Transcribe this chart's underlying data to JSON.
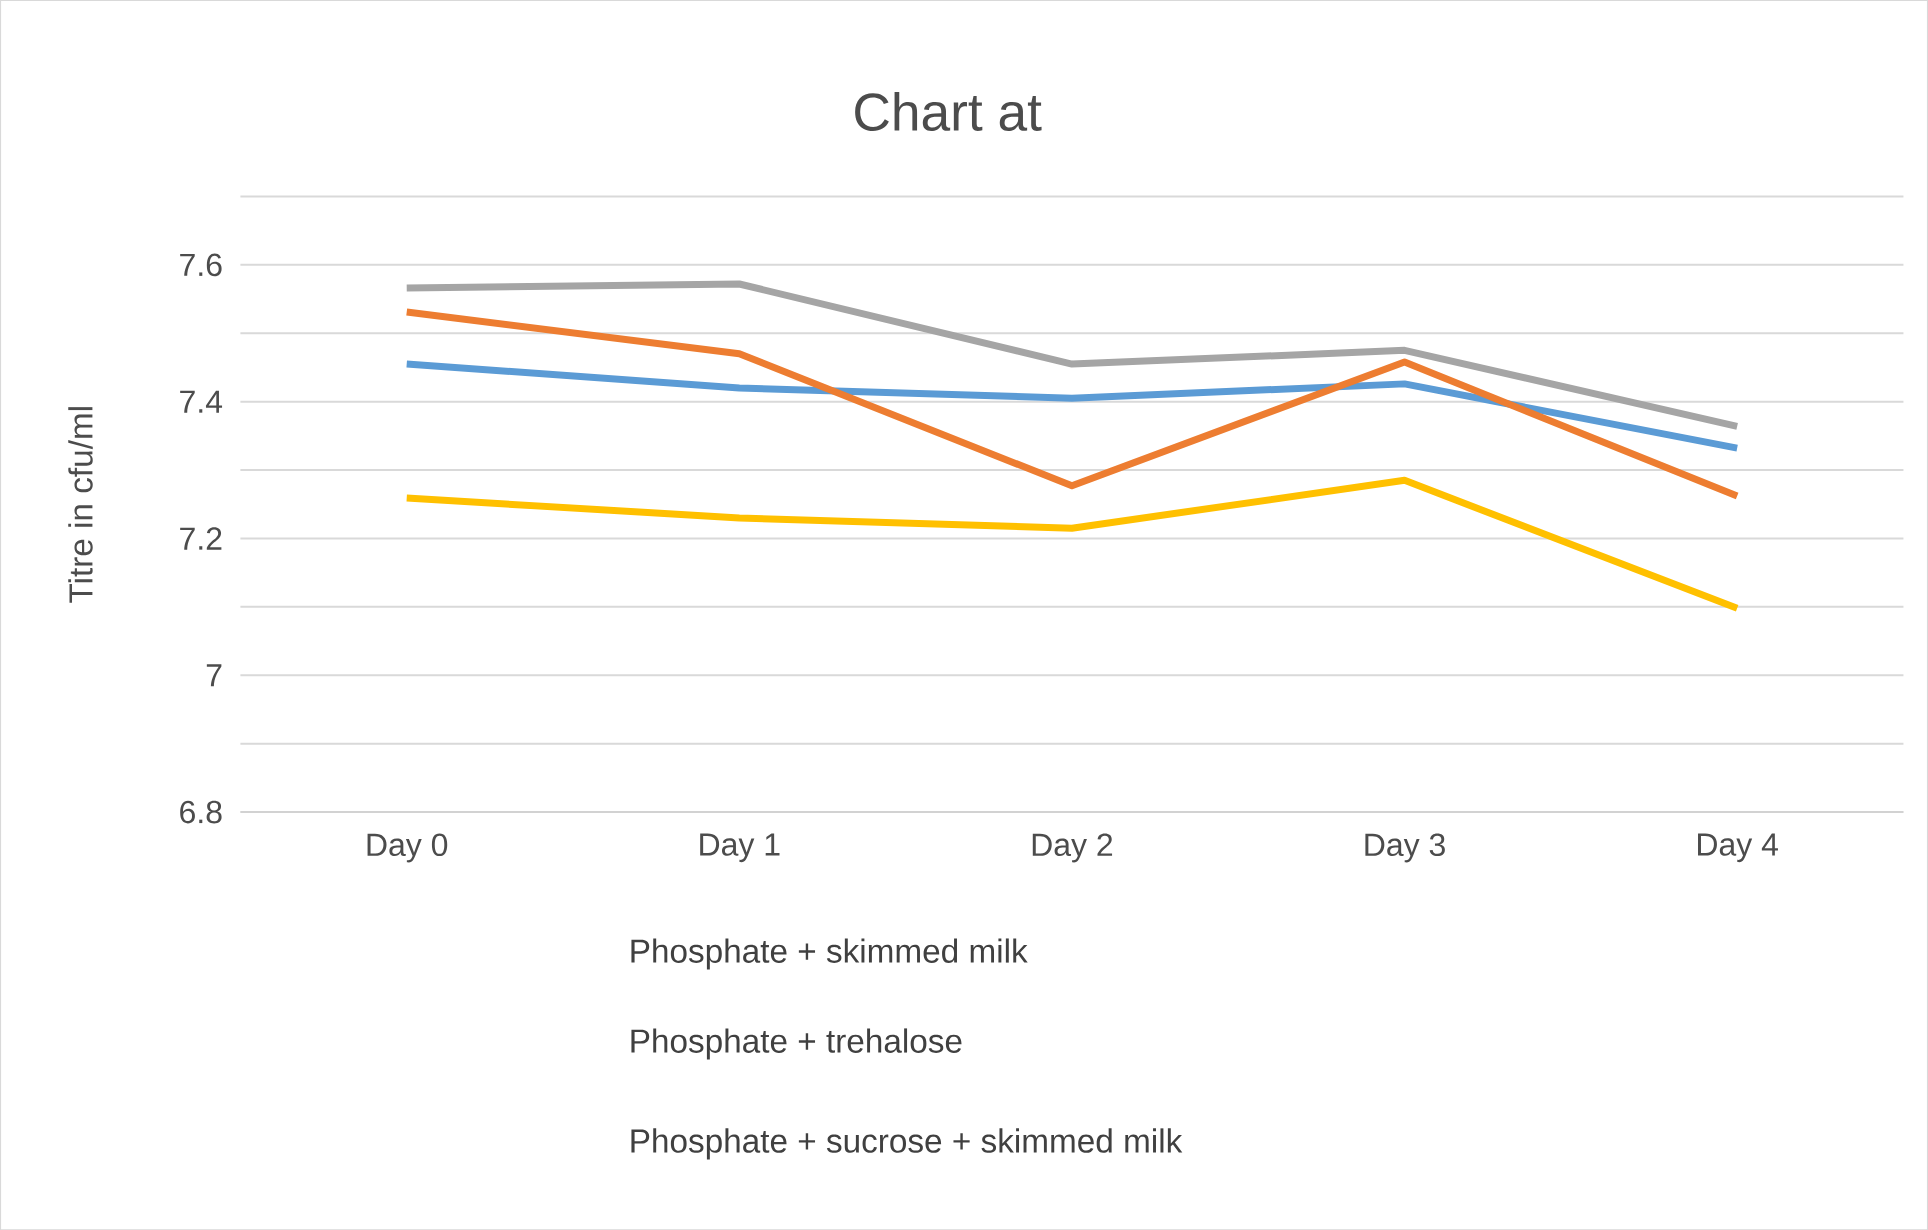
{
  "chart_data": {
    "type": "line",
    "title": "Chart at",
    "ylabel": "Titre in cfu/ml",
    "categories": [
      "Day 0",
      "Day 1",
      "Day 2",
      "Day 3",
      "Day 4"
    ],
    "series": [
      {
        "color": "#5b9bd5",
        "values": [
          7.455,
          7.42,
          7.405,
          7.426,
          7.332
        ]
      },
      {
        "color": "#ed7d31",
        "values": [
          7.531,
          7.47,
          7.277,
          7.458,
          7.262
        ]
      },
      {
        "color": "#a5a5a5",
        "values": [
          7.566,
          7.572,
          7.455,
          7.475,
          7.364
        ]
      },
      {
        "color": "#ffc000",
        "values": [
          7.259,
          7.23,
          7.215,
          7.285,
          7.098
        ]
      }
    ],
    "ylim": [
      6.8,
      7.7
    ],
    "yticks": [
      {
        "value": 6.8,
        "label": "6.8"
      },
      {
        "value": 6.9,
        "label": null
      },
      {
        "value": 7.0,
        "label": "7"
      },
      {
        "value": 7.1,
        "label": null
      },
      {
        "value": 7.2,
        "label": "7.2"
      },
      {
        "value": 7.3,
        "label": null
      },
      {
        "value": 7.4,
        "label": "7.4"
      },
      {
        "value": 7.5,
        "label": null
      },
      {
        "value": 7.6,
        "label": "7.6"
      },
      {
        "value": 7.7,
        "label": null
      }
    ],
    "grid": "y",
    "marker": "none",
    "line_style": "solid",
    "annotations": [
      "Phosphate + skimmed milk",
      "Phosphate + trehalose",
      "Phosphate + sucrose + skimmed milk"
    ]
  }
}
